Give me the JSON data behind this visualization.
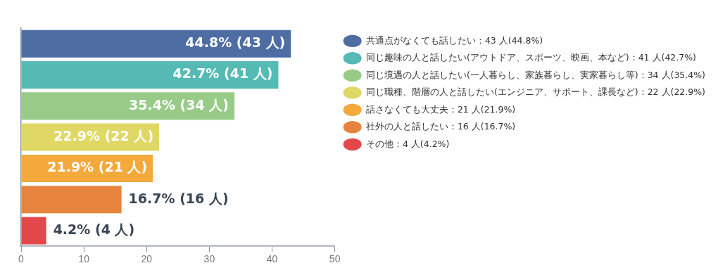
{
  "chart_data": {
    "type": "bar",
    "orientation": "horizontal",
    "categories": [
      null,
      null,
      null,
      null,
      null,
      null,
      null
    ],
    "series": [
      {
        "name": "共通点がなくても話したい：43 人(44.8%)",
        "color": "#4d6da3",
        "values": [
          43,
          null,
          null,
          null,
          null,
          null,
          null
        ],
        "value_labels": [
          "44.8% (43 人)",
          null,
          null,
          null,
          null,
          null,
          null
        ]
      },
      {
        "name": "同じ趣味の人と話したい(アウトドア、スポーツ、映画、本など)：41 人(42.7%)",
        "color": "#55bab3",
        "values": [
          null,
          41,
          null,
          null,
          null,
          null,
          null
        ],
        "value_labels": [
          null,
          "42.7% (41 人)",
          null,
          null,
          null,
          null,
          null
        ]
      },
      {
        "name": "同じ境遇の人と話したい(一人暮らし、家族暮らし、実家暮らし等)：34 人(35.4%)",
        "color": "#97cb87",
        "values": [
          null,
          null,
          34,
          null,
          null,
          null,
          null
        ],
        "value_labels": [
          null,
          null,
          "35.4% (34 人)",
          null,
          null,
          null,
          null
        ]
      },
      {
        "name": "同じ職種、階層の人と話したい(エンジニア、サポート、課長など)：22 人(22.9%)",
        "color": "#dfd865",
        "values": [
          null,
          null,
          null,
          22,
          null,
          null,
          null
        ],
        "value_labels": [
          null,
          null,
          null,
          "22.9% (22 人)",
          null,
          null,
          null
        ]
      },
      {
        "name": "話さなくても大丈夫：21 人(21.9%)",
        "color": "#f3a93c",
        "values": [
          null,
          null,
          null,
          null,
          21,
          null,
          null
        ],
        "value_labels": [
          null,
          null,
          null,
          null,
          "21.9% (21 人)",
          null,
          null
        ]
      },
      {
        "name": "社外の人と話したい：16 人(16.7%)",
        "color": "#e6843e",
        "values": [
          null,
          null,
          null,
          null,
          null,
          16,
          null
        ],
        "value_labels": [
          null,
          null,
          null,
          null,
          null,
          "16.7% (16 人)",
          null
        ]
      },
      {
        "name": "その他：4 人(4.2%)",
        "color": "#e2484a",
        "values": [
          null,
          null,
          null,
          null,
          null,
          null,
          4
        ],
        "value_labels": [
          null,
          null,
          null,
          null,
          null,
          null,
          "4.2% (4 人)"
        ]
      }
    ],
    "xlim": [
      0,
      50
    ],
    "xticks": [
      0,
      10,
      20,
      30,
      40,
      50
    ],
    "grid": false,
    "legend": "right",
    "tick_labels": "x"
  }
}
